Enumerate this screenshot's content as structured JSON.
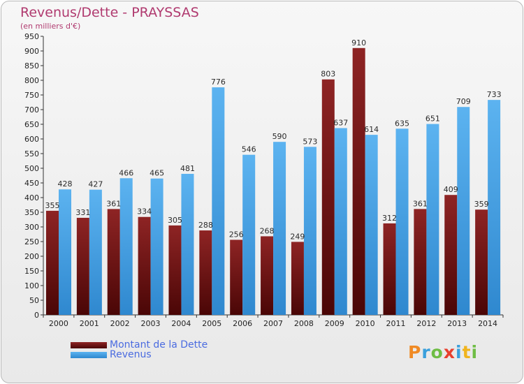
{
  "title": "Revenus/Dette - PRAYSSAS",
  "subtitle": "(en milliers d'€)",
  "logo_text": "Proxiti",
  "colors": {
    "dette": "#7a1a1a",
    "revenus": "#4fa6e6",
    "title": "#b03a6f",
    "legend_text": "#4a6be0"
  },
  "chart_data": {
    "type": "bar",
    "title": "Revenus/Dette - PRAYSSAS",
    "ylabel": "(en milliers d'€)",
    "xlabel": "",
    "ylim": [
      0,
      950
    ],
    "ytick_step": 50,
    "grid": false,
    "legend_position": "bottom-left",
    "categories": [
      "2000",
      "2001",
      "2002",
      "2003",
      "2004",
      "2005",
      "2006",
      "2007",
      "2008",
      "2009",
      "2010",
      "2011",
      "2012",
      "2013",
      "2014"
    ],
    "series": [
      {
        "name": "Montant de la Dette",
        "color": "#7a1a1a",
        "values": [
          355,
          331,
          361,
          334,
          305,
          288,
          256,
          268,
          249,
          803,
          910,
          312,
          361,
          409,
          359
        ]
      },
      {
        "name": "Revenus",
        "color": "#4fa6e6",
        "values": [
          428,
          427,
          466,
          465,
          481,
          776,
          546,
          590,
          573,
          637,
          614,
          635,
          651,
          709,
          733
        ]
      }
    ]
  }
}
